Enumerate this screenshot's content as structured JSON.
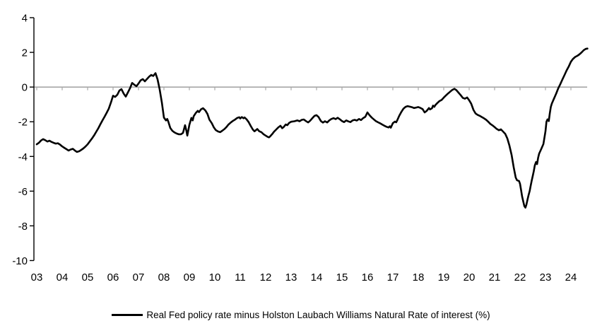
{
  "chart_data": {
    "type": "line",
    "title": "",
    "xlabel": "",
    "ylabel": "",
    "ylim": [
      -10,
      4
    ],
    "xlim": [
      2003,
      2024.72
    ],
    "grid": "none",
    "zero_line": true,
    "zero_line_color": "#a6a6a6",
    "axis_color": "#000000",
    "legend_position": "bottom",
    "y_ticks": {
      "values": [
        4,
        2,
        0,
        -2,
        -4,
        -6,
        -8,
        -10
      ],
      "labels": [
        "4",
        "2",
        "0",
        "-2",
        "-4",
        "-6",
        "-8",
        "-10"
      ]
    },
    "x_ticks": {
      "values": [
        2003,
        2004,
        2005,
        2006,
        2007,
        2008,
        2009,
        2010,
        2011,
        2012,
        2013,
        2014,
        2015,
        2016,
        2017,
        2018,
        2019,
        2020,
        2021,
        2022,
        2023,
        2024
      ],
      "labels": [
        "03",
        "04",
        "05",
        "06",
        "07",
        "08",
        "09",
        "10",
        "11",
        "12",
        "13",
        "14",
        "15",
        "16",
        "17",
        "18",
        "19",
        "20",
        "21",
        "22",
        "23",
        "24"
      ]
    },
    "series": [
      {
        "name": "Real Fed policy rate minus Holston Laubach Williams Natural Rate of interest (%)",
        "color": "#000000",
        "points": [
          [
            2003.0,
            -3.3
          ],
          [
            2003.08,
            -3.22
          ],
          [
            2003.17,
            -3.08
          ],
          [
            2003.25,
            -3.0
          ],
          [
            2003.33,
            -3.06
          ],
          [
            2003.42,
            -3.14
          ],
          [
            2003.5,
            -3.09
          ],
          [
            2003.58,
            -3.16
          ],
          [
            2003.67,
            -3.22
          ],
          [
            2003.75,
            -3.26
          ],
          [
            2003.83,
            -3.24
          ],
          [
            2003.92,
            -3.32
          ],
          [
            2004.0,
            -3.42
          ],
          [
            2004.08,
            -3.5
          ],
          [
            2004.17,
            -3.58
          ],
          [
            2004.25,
            -3.66
          ],
          [
            2004.33,
            -3.6
          ],
          [
            2004.42,
            -3.56
          ],
          [
            2004.5,
            -3.66
          ],
          [
            2004.58,
            -3.74
          ],
          [
            2004.67,
            -3.7
          ],
          [
            2004.75,
            -3.62
          ],
          [
            2004.83,
            -3.54
          ],
          [
            2004.92,
            -3.42
          ],
          [
            2005.0,
            -3.3
          ],
          [
            2005.08,
            -3.14
          ],
          [
            2005.17,
            -2.97
          ],
          [
            2005.25,
            -2.8
          ],
          [
            2005.33,
            -2.6
          ],
          [
            2005.42,
            -2.38
          ],
          [
            2005.5,
            -2.15
          ],
          [
            2005.58,
            -1.93
          ],
          [
            2005.67,
            -1.7
          ],
          [
            2005.75,
            -1.48
          ],
          [
            2005.83,
            -1.25
          ],
          [
            2005.92,
            -0.88
          ],
          [
            2006.0,
            -0.5
          ],
          [
            2006.08,
            -0.57
          ],
          [
            2006.17,
            -0.44
          ],
          [
            2006.25,
            -0.2
          ],
          [
            2006.33,
            -0.12
          ],
          [
            2006.42,
            -0.38
          ],
          [
            2006.5,
            -0.55
          ],
          [
            2006.58,
            -0.32
          ],
          [
            2006.67,
            -0.06
          ],
          [
            2006.75,
            0.24
          ],
          [
            2006.83,
            0.14
          ],
          [
            2006.92,
            0.05
          ],
          [
            2007.0,
            0.2
          ],
          [
            2007.08,
            0.38
          ],
          [
            2007.17,
            0.46
          ],
          [
            2007.25,
            0.33
          ],
          [
            2007.33,
            0.46
          ],
          [
            2007.42,
            0.6
          ],
          [
            2007.5,
            0.7
          ],
          [
            2007.58,
            0.64
          ],
          [
            2007.67,
            0.8
          ],
          [
            2007.75,
            0.44
          ],
          [
            2007.83,
            -0.12
          ],
          [
            2007.92,
            -0.9
          ],
          [
            2008.0,
            -1.76
          ],
          [
            2008.08,
            -1.92
          ],
          [
            2008.13,
            -1.84
          ],
          [
            2008.17,
            -1.98
          ],
          [
            2008.25,
            -2.36
          ],
          [
            2008.33,
            -2.52
          ],
          [
            2008.42,
            -2.62
          ],
          [
            2008.5,
            -2.68
          ],
          [
            2008.58,
            -2.72
          ],
          [
            2008.67,
            -2.72
          ],
          [
            2008.75,
            -2.64
          ],
          [
            2008.83,
            -2.2
          ],
          [
            2008.88,
            -2.5
          ],
          [
            2008.92,
            -2.8
          ],
          [
            2009.0,
            -2.18
          ],
          [
            2009.08,
            -1.78
          ],
          [
            2009.13,
            -1.92
          ],
          [
            2009.17,
            -1.68
          ],
          [
            2009.25,
            -1.5
          ],
          [
            2009.33,
            -1.37
          ],
          [
            2009.38,
            -1.44
          ],
          [
            2009.46,
            -1.28
          ],
          [
            2009.54,
            -1.22
          ],
          [
            2009.63,
            -1.35
          ],
          [
            2009.71,
            -1.55
          ],
          [
            2009.79,
            -1.88
          ],
          [
            2009.88,
            -2.08
          ],
          [
            2009.96,
            -2.32
          ],
          [
            2010.04,
            -2.48
          ],
          [
            2010.13,
            -2.56
          ],
          [
            2010.21,
            -2.6
          ],
          [
            2010.29,
            -2.52
          ],
          [
            2010.38,
            -2.42
          ],
          [
            2010.46,
            -2.3
          ],
          [
            2010.54,
            -2.16
          ],
          [
            2010.63,
            -2.04
          ],
          [
            2010.71,
            -1.95
          ],
          [
            2010.79,
            -1.88
          ],
          [
            2010.88,
            -1.78
          ],
          [
            2010.96,
            -1.74
          ],
          [
            2011.0,
            -1.81
          ],
          [
            2011.06,
            -1.73
          ],
          [
            2011.13,
            -1.8
          ],
          [
            2011.17,
            -1.75
          ],
          [
            2011.25,
            -1.86
          ],
          [
            2011.33,
            -2.02
          ],
          [
            2011.42,
            -2.26
          ],
          [
            2011.5,
            -2.46
          ],
          [
            2011.56,
            -2.55
          ],
          [
            2011.63,
            -2.47
          ],
          [
            2011.67,
            -2.42
          ],
          [
            2011.75,
            -2.55
          ],
          [
            2011.83,
            -2.6
          ],
          [
            2011.92,
            -2.72
          ],
          [
            2012.0,
            -2.8
          ],
          [
            2012.08,
            -2.87
          ],
          [
            2012.13,
            -2.9
          ],
          [
            2012.17,
            -2.85
          ],
          [
            2012.25,
            -2.72
          ],
          [
            2012.33,
            -2.57
          ],
          [
            2012.42,
            -2.44
          ],
          [
            2012.5,
            -2.32
          ],
          [
            2012.58,
            -2.23
          ],
          [
            2012.65,
            -2.37
          ],
          [
            2012.71,
            -2.3
          ],
          [
            2012.79,
            -2.16
          ],
          [
            2012.85,
            -2.2
          ],
          [
            2012.92,
            -2.07
          ],
          [
            2013.0,
            -2.0
          ],
          [
            2013.13,
            -1.97
          ],
          [
            2013.25,
            -1.92
          ],
          [
            2013.33,
            -1.97
          ],
          [
            2013.42,
            -1.89
          ],
          [
            2013.5,
            -1.87
          ],
          [
            2013.58,
            -1.96
          ],
          [
            2013.67,
            -2.04
          ],
          [
            2013.75,
            -1.94
          ],
          [
            2013.83,
            -1.8
          ],
          [
            2013.92,
            -1.66
          ],
          [
            2014.0,
            -1.62
          ],
          [
            2014.08,
            -1.73
          ],
          [
            2014.17,
            -1.96
          ],
          [
            2014.25,
            -2.05
          ],
          [
            2014.33,
            -1.97
          ],
          [
            2014.42,
            -2.04
          ],
          [
            2014.5,
            -1.92
          ],
          [
            2014.58,
            -1.84
          ],
          [
            2014.67,
            -1.79
          ],
          [
            2014.75,
            -1.85
          ],
          [
            2014.83,
            -1.77
          ],
          [
            2014.92,
            -1.86
          ],
          [
            2015.0,
            -1.96
          ],
          [
            2015.08,
            -2.02
          ],
          [
            2015.17,
            -1.92
          ],
          [
            2015.25,
            -1.98
          ],
          [
            2015.33,
            -2.02
          ],
          [
            2015.42,
            -1.92
          ],
          [
            2015.5,
            -1.89
          ],
          [
            2015.58,
            -1.93
          ],
          [
            2015.67,
            -1.84
          ],
          [
            2015.75,
            -1.9
          ],
          [
            2015.83,
            -1.79
          ],
          [
            2015.92,
            -1.71
          ],
          [
            2016.0,
            -1.46
          ],
          [
            2016.08,
            -1.62
          ],
          [
            2016.17,
            -1.76
          ],
          [
            2016.25,
            -1.86
          ],
          [
            2016.33,
            -1.96
          ],
          [
            2016.42,
            -2.03
          ],
          [
            2016.5,
            -2.09
          ],
          [
            2016.58,
            -2.16
          ],
          [
            2016.67,
            -2.23
          ],
          [
            2016.75,
            -2.29
          ],
          [
            2016.83,
            -2.33
          ],
          [
            2016.88,
            -2.26
          ],
          [
            2016.92,
            -2.34
          ],
          [
            2017.0,
            -2.08
          ],
          [
            2017.08,
            -1.99
          ],
          [
            2017.13,
            -2.03
          ],
          [
            2017.17,
            -1.92
          ],
          [
            2017.25,
            -1.66
          ],
          [
            2017.33,
            -1.44
          ],
          [
            2017.42,
            -1.24
          ],
          [
            2017.5,
            -1.14
          ],
          [
            2017.58,
            -1.1
          ],
          [
            2017.67,
            -1.13
          ],
          [
            2017.75,
            -1.16
          ],
          [
            2017.83,
            -1.21
          ],
          [
            2017.92,
            -1.18
          ],
          [
            2018.0,
            -1.15
          ],
          [
            2018.08,
            -1.2
          ],
          [
            2018.17,
            -1.27
          ],
          [
            2018.25,
            -1.46
          ],
          [
            2018.33,
            -1.37
          ],
          [
            2018.42,
            -1.21
          ],
          [
            2018.46,
            -1.29
          ],
          [
            2018.54,
            -1.22
          ],
          [
            2018.58,
            -1.07
          ],
          [
            2018.63,
            -1.14
          ],
          [
            2018.67,
            -1.04
          ],
          [
            2018.75,
            -0.92
          ],
          [
            2018.83,
            -0.81
          ],
          [
            2018.92,
            -0.74
          ],
          [
            2019.0,
            -0.61
          ],
          [
            2019.08,
            -0.49
          ],
          [
            2019.17,
            -0.37
          ],
          [
            2019.25,
            -0.27
          ],
          [
            2019.33,
            -0.17
          ],
          [
            2019.42,
            -0.1
          ],
          [
            2019.5,
            -0.18
          ],
          [
            2019.58,
            -0.32
          ],
          [
            2019.67,
            -0.47
          ],
          [
            2019.75,
            -0.62
          ],
          [
            2019.83,
            -0.67
          ],
          [
            2019.92,
            -0.6
          ],
          [
            2020.0,
            -0.76
          ],
          [
            2020.08,
            -0.96
          ],
          [
            2020.17,
            -1.32
          ],
          [
            2020.25,
            -1.52
          ],
          [
            2020.33,
            -1.6
          ],
          [
            2020.42,
            -1.66
          ],
          [
            2020.5,
            -1.73
          ],
          [
            2020.58,
            -1.8
          ],
          [
            2020.67,
            -1.89
          ],
          [
            2020.75,
            -2.0
          ],
          [
            2020.83,
            -2.12
          ],
          [
            2020.92,
            -2.21
          ],
          [
            2021.0,
            -2.31
          ],
          [
            2021.08,
            -2.41
          ],
          [
            2021.17,
            -2.49
          ],
          [
            2021.25,
            -2.44
          ],
          [
            2021.33,
            -2.56
          ],
          [
            2021.42,
            -2.7
          ],
          [
            2021.5,
            -2.96
          ],
          [
            2021.58,
            -3.36
          ],
          [
            2021.67,
            -3.92
          ],
          [
            2021.75,
            -4.62
          ],
          [
            2021.83,
            -5.22
          ],
          [
            2021.88,
            -5.37
          ],
          [
            2021.96,
            -5.42
          ],
          [
            2022.0,
            -5.58
          ],
          [
            2022.04,
            -5.92
          ],
          [
            2022.08,
            -6.3
          ],
          [
            2022.13,
            -6.62
          ],
          [
            2022.17,
            -6.86
          ],
          [
            2022.21,
            -6.95
          ],
          [
            2022.25,
            -6.78
          ],
          [
            2022.29,
            -6.52
          ],
          [
            2022.33,
            -6.26
          ],
          [
            2022.38,
            -5.98
          ],
          [
            2022.42,
            -5.68
          ],
          [
            2022.46,
            -5.38
          ],
          [
            2022.5,
            -5.12
          ],
          [
            2022.54,
            -4.86
          ],
          [
            2022.58,
            -4.52
          ],
          [
            2022.63,
            -4.32
          ],
          [
            2022.67,
            -4.44
          ],
          [
            2022.71,
            -4.08
          ],
          [
            2022.75,
            -3.84
          ],
          [
            2022.83,
            -3.58
          ],
          [
            2022.92,
            -3.28
          ],
          [
            2023.0,
            -2.55
          ],
          [
            2023.04,
            -2.0
          ],
          [
            2023.08,
            -1.86
          ],
          [
            2023.13,
            -1.96
          ],
          [
            2023.17,
            -1.52
          ],
          [
            2023.21,
            -1.14
          ],
          [
            2023.25,
            -0.95
          ],
          [
            2023.33,
            -0.68
          ],
          [
            2023.42,
            -0.38
          ],
          [
            2023.5,
            -0.08
          ],
          [
            2023.58,
            0.16
          ],
          [
            2023.67,
            0.45
          ],
          [
            2023.75,
            0.7
          ],
          [
            2023.83,
            0.96
          ],
          [
            2023.92,
            1.2
          ],
          [
            2024.0,
            1.46
          ],
          [
            2024.08,
            1.62
          ],
          [
            2024.17,
            1.74
          ],
          [
            2024.25,
            1.8
          ],
          [
            2024.33,
            1.88
          ],
          [
            2024.42,
            2.0
          ],
          [
            2024.5,
            2.12
          ],
          [
            2024.58,
            2.2
          ],
          [
            2024.65,
            2.22
          ]
        ]
      }
    ]
  }
}
